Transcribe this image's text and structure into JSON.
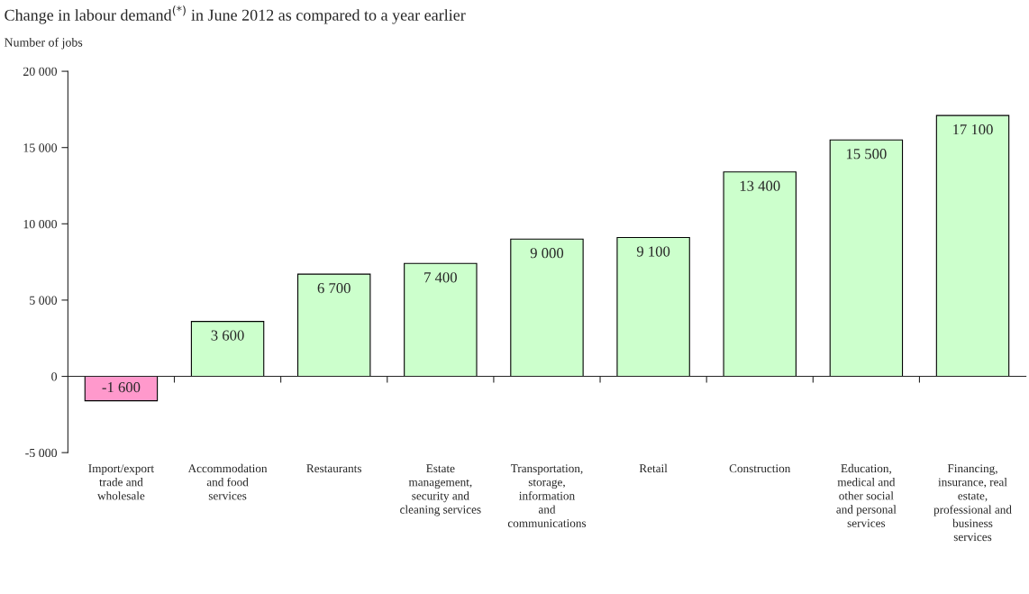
{
  "chart_data": {
    "type": "bar",
    "title": "Change in labour demand$^{(*)}$ in June 2012 as compared to a year earlier",
    "ylabel": "Number of jobs",
    "categories": [
      "Import/export\ntrade and\nwholesale",
      "Accommodation\nand food\nservices",
      "Restaurants",
      "Estate\nmanagement,\nsecurity and\ncleaning services",
      "Transportation,\nstorage,\ninformation\nand\ncommunications",
      "Retail",
      "Construction",
      "Education,\nmedical and\nother social\nand personal\nservices",
      "Financing,\ninsurance, real\nestate,\nprofessional and\nbusiness\nservices"
    ],
    "values": [
      -1600,
      3600,
      6700,
      7400,
      9000,
      9100,
      13400,
      15500,
      17100
    ],
    "colors": [
      "#ff99cc",
      "#ccffcc",
      "#ccffcc",
      "#ccffcc",
      "#ccffcc",
      "#ccffcc",
      "#ccffcc",
      "#ccffcc",
      "#ccffcc"
    ],
    "value_labels": [
      "-1 600",
      "3 600",
      "6 700",
      "7 400",
      "9 000",
      "9 100",
      "13 400",
      "15 500",
      "17 100"
    ],
    "ylim": [
      -5000,
      20000
    ],
    "yticks": [
      {
        "value": -5000,
        "label": "-5 000"
      },
      0,
      {
        "value": 5000,
        "label": "5 000"
      },
      {
        "value": 10000,
        "label": "10 000"
      },
      {
        "value": 15000,
        "label": "15 000"
      },
      {
        "value": 20000,
        "label": "20 000"
      }
    ],
    "legend": false
  }
}
